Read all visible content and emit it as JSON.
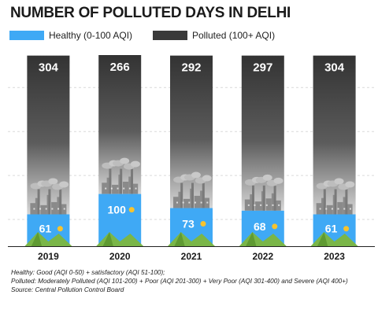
{
  "chart_data": {
    "type": "bar",
    "stacked": true,
    "title": "NUMBER OF POLLUTED DAYS IN DELHI",
    "categories": [
      "2019",
      "2020",
      "2021",
      "2022",
      "2023"
    ],
    "series": [
      {
        "name": "Healthy (0-100 AQI)",
        "values": [
          61,
          100,
          73,
          68,
          61
        ],
        "color": "#3fa9f5"
      },
      {
        "name": "Polluted (100+ AQI)",
        "values": [
          304,
          266,
          292,
          297,
          304
        ],
        "color": "#3a3a3a"
      }
    ],
    "ylim": [
      0,
      366
    ],
    "grid": true,
    "legend_position": "top-left"
  },
  "notes": [
    "Healthy: Good (AQI 0-50) + satisfactory (AQI 51-100);",
    "Polluted: Moderately Polluted (AQI 101-200) + Poor (AQI 201-300) + Very Poor (AQI 301-400) and Severe (AQI 400+)",
    "Source: Central Pollution Control Board"
  ],
  "icons": {
    "bar_decoration": "factory-skyline-icon",
    "ground_decoration": "mountain-icon",
    "sun": "sun-icon"
  }
}
